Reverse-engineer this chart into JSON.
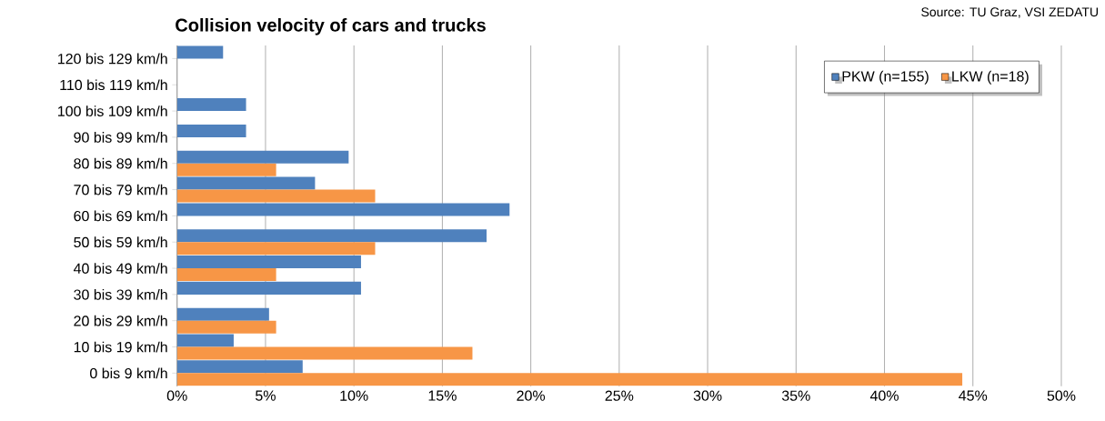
{
  "chart_data": {
    "type": "bar",
    "orientation": "horizontal",
    "title": "Collision velocity of cars and trucks",
    "annotations": [
      "Source: TU Graz, VSI ZEDATU"
    ],
    "categories": [
      "120 bis 129 km/h",
      "110 bis 119 km/h",
      "100 bis 109 km/h",
      "90 bis 99 km/h",
      "80 bis 89 km/h",
      "70 bis 79 km/h",
      "60 bis 69 km/h",
      "50 bis 59 km/h",
      "40 bis 49 km/h",
      "30 bis 39 km/h",
      "20 bis 29 km/h",
      "10 bis 19 km/h",
      "0 bis 9 km/h"
    ],
    "series": [
      {
        "name": "PKW (n=155)",
        "color": "#4f81bd",
        "values": [
          2.6,
          null,
          3.9,
          3.9,
          9.7,
          7.8,
          18.8,
          17.5,
          10.4,
          10.4,
          5.2,
          3.2,
          7.1
        ]
      },
      {
        "name": "LKW (n=18)",
        "color": "#f79646",
        "values": [
          null,
          null,
          null,
          null,
          5.6,
          11.2,
          null,
          11.2,
          5.6,
          null,
          5.6,
          16.7,
          44.4
        ]
      }
    ],
    "xlim": [
      0,
      50
    ],
    "xticks": [
      {
        "value": 0,
        "label": "0%"
      },
      {
        "value": 5,
        "label": "5%"
      },
      {
        "value": 10,
        "label": "10%"
      },
      {
        "value": 15,
        "label": "15%"
      },
      {
        "value": 20,
        "label": "20%"
      },
      {
        "value": 25,
        "label": "25%"
      },
      {
        "value": 30,
        "label": "30%"
      },
      {
        "value": 35,
        "label": "35%"
      },
      {
        "value": 40,
        "label": "40%"
      },
      {
        "value": 45,
        "label": "45%"
      },
      {
        "value": 50,
        "label": "50%"
      }
    ],
    "grid": "x",
    "legend": "top right"
  }
}
